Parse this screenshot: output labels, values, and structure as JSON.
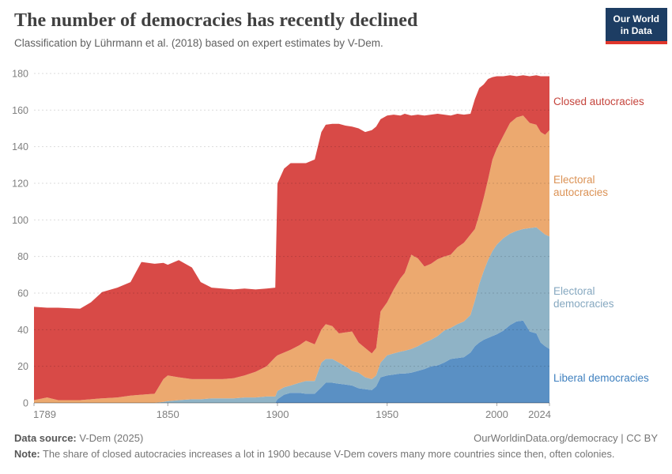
{
  "header": {
    "title": "The number of democracies has recently declined",
    "subtitle": "Classification by Lührmann et al. (2018) based on expert estimates by V-Dem.",
    "logo": {
      "line1": "Our World",
      "line2": "in Data",
      "bg_color": "#1d3d63",
      "accent_color": "#e0362c"
    }
  },
  "chart_data": {
    "type": "area",
    "stacked": true,
    "title": "The number of democracies has recently declined",
    "xlabel": "",
    "ylabel": "",
    "xlim": [
      1789,
      2024
    ],
    "ylim": [
      0,
      180
    ],
    "x_ticks": [
      1789,
      1850,
      1900,
      1950,
      2000,
      2024
    ],
    "y_ticks": [
      0,
      20,
      40,
      60,
      80,
      100,
      120,
      140,
      160,
      180
    ],
    "grid": "dashed horizontal",
    "legend_position": "right edge, labels colored per series",
    "x": [
      1789,
      1795,
      1800,
      1810,
      1815,
      1820,
      1827,
      1833,
      1838,
      1844,
      1848,
      1850,
      1855,
      1861,
      1865,
      1870,
      1875,
      1880,
      1885,
      1890,
      1895,
      1899,
      1900,
      1903,
      1906,
      1910,
      1913,
      1917,
      1920,
      1922,
      1925,
      1928,
      1931,
      1934,
      1937,
      1940,
      1943,
      1945,
      1947,
      1950,
      1953,
      1956,
      1958,
      1961,
      1964,
      1967,
      1970,
      1973,
      1976,
      1979,
      1982,
      1985,
      1988,
      1990,
      1992,
      1994,
      1996,
      1998,
      2000,
      2003,
      2006,
      2009,
      2012,
      2015,
      2018,
      2020,
      2022,
      2024
    ],
    "series": [
      {
        "name": "liberal_democracies",
        "label": "Liberal democracies",
        "color": "#5a90c4",
        "label_color": "#3f80bf",
        "values": [
          0,
          0,
          0,
          0,
          0,
          0,
          0,
          0,
          0,
          0,
          0,
          0,
          0,
          0,
          0,
          0,
          0,
          0,
          0,
          0,
          0,
          0,
          2,
          4.5,
          5.5,
          5.5,
          5,
          5,
          8.5,
          11,
          11,
          10.5,
          10,
          9.5,
          8,
          7.5,
          7,
          9,
          14,
          15,
          15.5,
          16,
          16,
          16.5,
          17.5,
          18.5,
          20,
          20.5,
          22,
          24,
          24.5,
          25,
          27.5,
          31,
          33,
          34.5,
          35.5,
          36.5,
          37.5,
          39.5,
          42.5,
          44.5,
          45,
          39,
          38,
          33,
          31,
          29.5
        ]
      },
      {
        "name": "electoral_democracies",
        "label": "Electoral democracies",
        "color": "#8fb3c6",
        "label_color": "#86a8c0",
        "values": [
          0,
          0,
          0,
          0,
          0,
          0,
          0,
          0,
          0,
          0,
          0.5,
          1,
          1.5,
          2,
          2,
          2.5,
          2.5,
          2.5,
          3,
          3,
          3.5,
          3.5,
          4.5,
          4,
          4,
          5.5,
          7,
          7,
          13.5,
          13,
          13,
          11.5,
          10,
          8,
          8.5,
          6.5,
          6,
          6,
          8,
          11,
          11.5,
          12,
          12.5,
          13,
          13.5,
          14.5,
          14.5,
          16,
          17.5,
          17,
          18.5,
          19.5,
          20.5,
          25,
          32,
          37.5,
          42.5,
          46.5,
          49,
          50.5,
          50,
          49.5,
          50,
          56.5,
          58,
          61,
          61,
          61.5
        ]
      },
      {
        "name": "electoral_autocracies",
        "label": "Electoral autocracies",
        "color": "#eca96f",
        "label_color": "#db9255",
        "values": [
          1.5,
          3,
          1.5,
          1.5,
          2,
          2.5,
          3,
          4,
          4.5,
          5,
          12.5,
          14,
          12.5,
          11,
          11,
          10.5,
          10.5,
          11,
          12,
          14,
          16.5,
          21.5,
          19.5,
          19,
          19.5,
          20.5,
          22,
          20,
          18,
          19,
          18,
          16,
          18.5,
          21.5,
          16.5,
          16,
          14,
          15,
          28,
          29,
          35,
          40,
          42.5,
          51.5,
          48,
          41.5,
          41.5,
          42,
          40.5,
          40,
          42,
          43,
          44,
          39,
          38,
          40,
          44,
          50,
          52.5,
          56,
          60.5,
          62,
          62,
          57.5,
          56,
          54,
          54.5,
          58
        ]
      },
      {
        "name": "closed_autocracies",
        "label": "Closed autocracies",
        "color": "#d84a47",
        "label_color": "#c5443c",
        "values": [
          51,
          49,
          50.5,
          50,
          53,
          58,
          60,
          62,
          72.5,
          71,
          63.5,
          60.5,
          64,
          61,
          53,
          50,
          49.5,
          48.5,
          47.5,
          45,
          42.5,
          38,
          94,
          100.5,
          102,
          99.5,
          97,
          101,
          108,
          109,
          110.5,
          114.5,
          113,
          112,
          117,
          118,
          122,
          121,
          105,
          102,
          95.5,
          89,
          87,
          76,
          78.5,
          82.5,
          81.5,
          79.5,
          77.5,
          76,
          73,
          70,
          66,
          71,
          69,
          62,
          55,
          45,
          39.5,
          32.5,
          26,
          22.5,
          22,
          25.5,
          27,
          30.5,
          32,
          29.5
        ]
      }
    ]
  },
  "footer": {
    "data_source_label": "Data source:",
    "data_source_value": "V-Dem (2025)",
    "link": "OurWorldinData.org/democracy",
    "separator": " | ",
    "license": "CC BY",
    "note_label": "Note:",
    "note_text": "The share of closed autocracies increases a lot in 1900 because V-Dem covers many more countries since then, often colonies."
  }
}
